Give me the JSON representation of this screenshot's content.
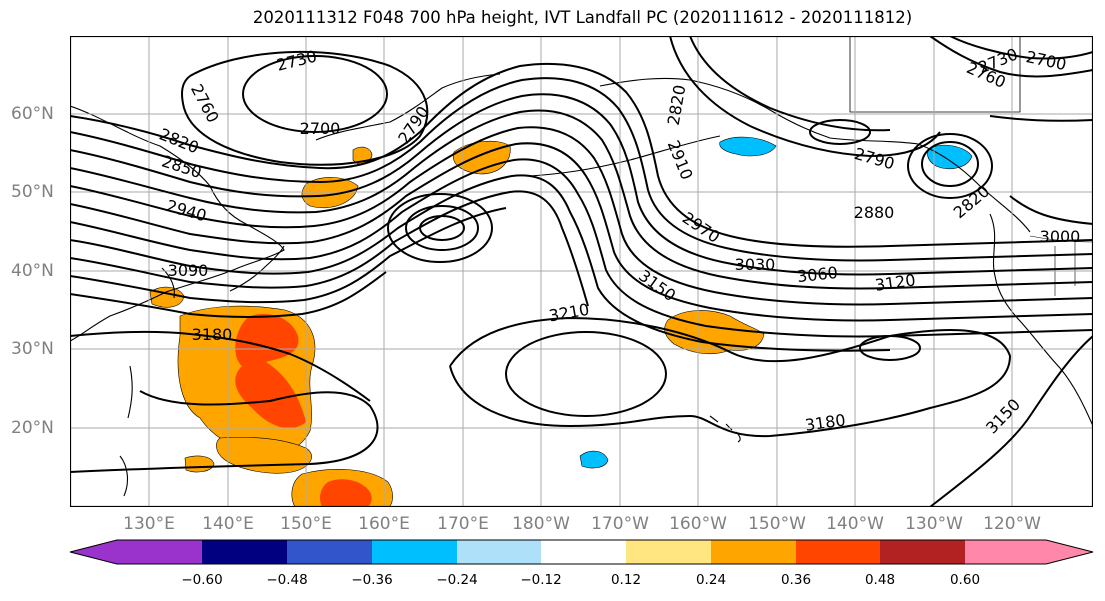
{
  "title": "2020111312 F048 700 hPa height, IVT Landfall PC (2020111612 - 2020111812)",
  "lon_labels": [
    "130°E",
    "140°E",
    "150°E",
    "160°E",
    "170°E",
    "180°W",
    "170°W",
    "160°W",
    "150°W",
    "140°W",
    "130°W",
    "120°W"
  ],
  "lat_labels": [
    "60°N",
    "50°N",
    "40°N",
    "30°N",
    "20°N"
  ],
  "contour_labels": [
    "2730",
    "2700",
    "2760",
    "2820",
    "2850",
    "2940",
    "2790",
    "3090",
    "3180",
    "2820",
    "2910",
    "2970",
    "3150",
    "3210",
    "3030",
    "3060",
    "3120",
    "2880",
    "2790",
    "2820",
    "3000",
    "2730",
    "2700",
    "2760",
    "3180",
    "3150"
  ],
  "colorbar": {
    "tick_labels": [
      "−0.60",
      "−0.48",
      "−0.36",
      "−0.24",
      "−0.12",
      "0.12",
      "0.24",
      "0.36",
      "0.48",
      "0.60"
    ],
    "colors": [
      "#9933cc",
      "#000080",
      "#3355cc",
      "#00bfff",
      "#aee0fa",
      "#ffffff",
      "#ffe680",
      "#ffa500",
      "#ff4500",
      "#b22222",
      "#ff88aa"
    ]
  },
  "colors": {
    "grid": "#aaaaaa",
    "label_gray": "#808080",
    "contour": "#000000"
  }
}
